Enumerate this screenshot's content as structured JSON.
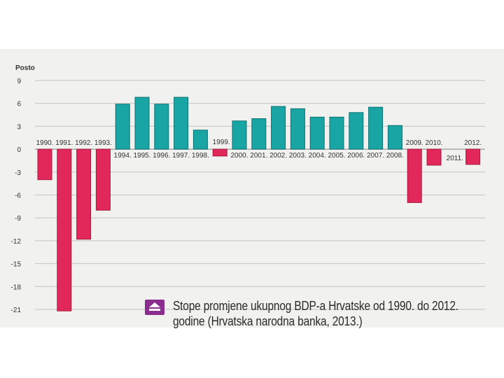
{
  "chart_data": {
    "type": "bar",
    "ylabel": "Posto",
    "ylim": [
      -21,
      9
    ],
    "yticks": [
      9,
      6,
      3,
      0,
      -3,
      -6,
      -9,
      -12,
      -15,
      -18,
      -21
    ],
    "grid": true,
    "categories": [
      "1990.",
      "1991.",
      "1992.",
      "1993.",
      "1994.",
      "1995.",
      "1996.",
      "1997.",
      "1998.",
      "1999.",
      "2000.",
      "2001.",
      "2002.",
      "2003.",
      "2004.",
      "2005.",
      "2006.",
      "2007.",
      "2008.",
      "2009.",
      "2010.",
      "2011.",
      "2012."
    ],
    "values": [
      -4.0,
      -21.2,
      -11.8,
      -8.0,
      5.9,
      6.8,
      5.9,
      6.8,
      2.5,
      -0.9,
      3.7,
      4.0,
      5.6,
      5.3,
      4.2,
      4.2,
      4.8,
      5.5,
      3.1,
      -7.0,
      -2.1,
      0.0,
      -2.0
    ],
    "colors": {
      "positive": "#1aa5a5",
      "negative": "#e2285a",
      "positive_edge": "#0c7272",
      "negative_edge": "#a81a40"
    }
  },
  "caption": {
    "line1": "Stope promjene ukupnog BDP-a Hrvatske od 1990. do 2012.",
    "line2": "godine (Hrvatska narodna banka, 2013.)",
    "icon": "upload-arrow-icon",
    "icon_color": "#8a2d8f"
  }
}
